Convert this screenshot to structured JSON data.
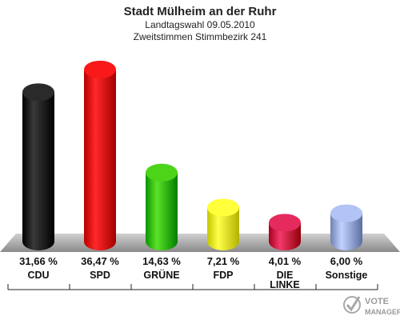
{
  "chart_data": {
    "type": "bar",
    "title": "Stadt Mülheim an der Ruhr",
    "subtitle_1": "Landtagswahl 09.05.2010",
    "subtitle_2": "Zweitstimmen Stimmbezirk 241",
    "categories": [
      "CDU",
      "SPD",
      "GRÜNE",
      "FDP",
      "DIE LINKE",
      "Sonstige"
    ],
    "values": [
      31.66,
      36.47,
      14.63,
      7.21,
      4.01,
      6.0
    ],
    "value_labels": [
      "31,66 %",
      "36,47 %",
      "14,63 %",
      "7,21 %",
      "4,01 %",
      "6,00 %"
    ],
    "colors": [
      "#111111",
      "#e00000",
      "#33bb00",
      "#eeee22",
      "#cc1144",
      "#99aadd"
    ],
    "ylim": [
      0,
      40
    ],
    "xlabel": "",
    "ylabel": "",
    "grid": false
  },
  "watermark": {
    "line1": "VOTE",
    "line2": "MANAGER",
    "icon": "vote-manager-check-icon"
  }
}
